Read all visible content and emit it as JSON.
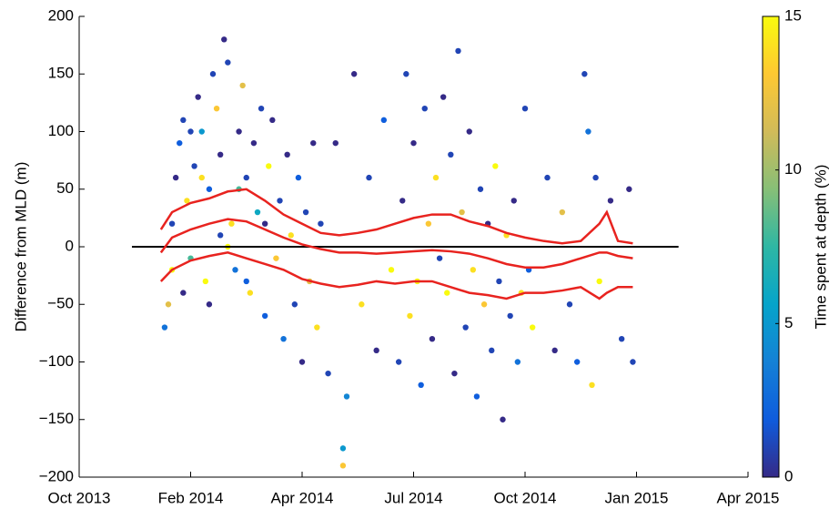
{
  "chart_data": {
    "type": "scatter",
    "ylabel": "Difference from MLD (m)",
    "xlim": [
      0,
      18
    ],
    "xticks": [
      {
        "value": 0,
        "label": "Oct 2013"
      },
      {
        "value": 3,
        "label": "Feb 2014"
      },
      {
        "value": 6,
        "label": "Apr 2014"
      },
      {
        "value": 9,
        "label": "Jul 2014"
      },
      {
        "value": 12,
        "label": "Oct 2014"
      },
      {
        "value": 15,
        "label": "Jan 2015"
      },
      {
        "value": 18,
        "label": "Apr 2015"
      }
    ],
    "ylim": [
      -200,
      200
    ],
    "yticks": [
      {
        "value": -200,
        "label": "−200"
      },
      {
        "value": -150,
        "label": "−150"
      },
      {
        "value": -100,
        "label": "−100"
      },
      {
        "value": -50,
        "label": "−50"
      },
      0,
      50,
      100,
      150,
      200
    ],
    "colorbar_label": "Time spent at depth (%)",
    "clim": [
      0,
      15
    ],
    "cticks": [
      0,
      5,
      10,
      15
    ],
    "colormap": [
      "#352a87",
      "#0f5cdd",
      "#1481d6",
      "#06a4ca",
      "#2eb7a4",
      "#87bf77",
      "#d1bb59",
      "#fec832",
      "#f9fb0e"
    ],
    "x": [
      2.3,
      2.4,
      2.5,
      2.6,
      2.7,
      2.8,
      2.9,
      3.0,
      3.1,
      3.2,
      3.3,
      3.4,
      3.5,
      3.6,
      3.7,
      3.8,
      3.9,
      4.0,
      4.1,
      4.2,
      4.3,
      4.4,
      4.5,
      4.6,
      4.7,
      4.8,
      4.9,
      5.0,
      5.1,
      5.2,
      5.3,
      5.4,
      5.5,
      5.6,
      5.7,
      5.8,
      5.9,
      6.0,
      6.1,
      6.2,
      6.3,
      6.4,
      6.5,
      2.5,
      3.0,
      3.5,
      4.0,
      4.5,
      5.0,
      3.3,
      3.8,
      4.3,
      2.8,
      6.7,
      6.9,
      7.1,
      7.1,
      7.2,
      7.4,
      7.6,
      7.8,
      8.0,
      8.2,
      8.4,
      8.6,
      8.7,
      8.8,
      8.9,
      9.0,
      9.1,
      9.2,
      9.3,
      9.4,
      9.5,
      9.6,
      9.7,
      9.8,
      9.9,
      10.0,
      10.1,
      10.2,
      10.3,
      10.4,
      10.5,
      10.6,
      10.7,
      10.8,
      10.9,
      11.0,
      11.1,
      11.2,
      11.3,
      11.4,
      11.5,
      11.6,
      11.7,
      11.8,
      11.9,
      12.0,
      12.1,
      12.2,
      12.6,
      12.8,
      13.0,
      13.2,
      13.4,
      13.6,
      13.7,
      13.8,
      13.9,
      14.0,
      14.3,
      14.6,
      14.8,
      14.9
    ],
    "values": [
      -70,
      -50,
      20,
      60,
      90,
      110,
      40,
      -10,
      70,
      130,
      100,
      -30,
      50,
      150,
      120,
      80,
      180,
      160,
      20,
      -20,
      100,
      140,
      60,
      -40,
      90,
      30,
      120,
      -60,
      70,
      110,
      -10,
      40,
      -80,
      80,
      10,
      -50,
      60,
      -100,
      30,
      -30,
      90,
      -70,
      20,
      -20,
      100,
      -50,
      0,
      -30,
      20,
      60,
      10,
      50,
      -40,
      -110,
      90,
      -190,
      -175,
      -130,
      150,
      -50,
      60,
      -90,
      110,
      -20,
      -100,
      40,
      150,
      -60,
      90,
      -30,
      -120,
      120,
      20,
      -80,
      60,
      -10,
      130,
      -40,
      80,
      -110,
      170,
      30,
      -70,
      100,
      -20,
      -130,
      50,
      -50,
      20,
      -90,
      70,
      -30,
      -150,
      10,
      -60,
      40,
      -100,
      -40,
      120,
      -20,
      -70,
      60,
      -90,
      30,
      -50,
      -100,
      150,
      100,
      -120,
      60,
      -30,
      40,
      -80,
      50,
      -100
    ],
    "color_values": [
      3,
      12,
      1,
      0,
      2,
      1,
      14,
      8,
      1,
      0,
      5,
      15,
      2,
      1,
      13,
      0,
      0,
      1,
      14,
      3,
      0,
      12,
      1,
      14,
      0,
      6,
      1,
      2,
      15,
      0,
      13,
      1,
      3,
      0,
      14,
      1,
      2,
      0,
      1,
      12,
      0,
      14,
      1,
      15,
      1,
      0,
      15,
      2,
      0,
      14,
      1,
      8,
      0,
      1,
      0,
      13,
      5,
      4,
      0,
      14,
      1,
      0,
      2,
      15,
      1,
      0,
      1,
      14,
      0,
      15,
      2,
      1,
      13,
      0,
      14,
      1,
      0,
      15,
      1,
      0,
      1,
      12,
      1,
      0,
      14,
      2,
      1,
      13,
      0,
      1,
      15,
      1,
      0,
      14,
      1,
      0,
      3,
      14,
      1,
      2,
      15,
      1,
      0,
      12,
      1,
      2,
      1,
      3,
      14,
      1,
      15,
      0,
      1,
      0,
      1
    ],
    "hline": {
      "y": 0,
      "xmin": 1.42,
      "xmax": 16.13,
      "color": "#000000"
    },
    "lines": [
      {
        "color": "#e8231f",
        "x": [
          2.2,
          2.5,
          3,
          3.5,
          4,
          4.5,
          5,
          5.5,
          6,
          6.5,
          7,
          7.5,
          8,
          8.5,
          9,
          9.5,
          10,
          10.5,
          11,
          11.5,
          12,
          12.5,
          13,
          13.5,
          14,
          14.2,
          14.5,
          14.9
        ],
        "values": [
          15,
          30,
          38,
          42,
          48,
          50,
          40,
          28,
          20,
          12,
          10,
          12,
          15,
          20,
          25,
          28,
          28,
          22,
          18,
          12,
          8,
          5,
          3,
          5,
          20,
          30,
          5,
          3
        ]
      },
      {
        "color": "#e8231f",
        "x": [
          2.2,
          2.5,
          3,
          3.5,
          4,
          4.5,
          5,
          5.5,
          6,
          6.5,
          7,
          7.5,
          8,
          8.5,
          9,
          9.5,
          10,
          10.5,
          11,
          11.5,
          12,
          12.5,
          13,
          13.5,
          14,
          14.2,
          14.5,
          14.9
        ],
        "values": [
          -5,
          8,
          15,
          20,
          24,
          22,
          15,
          8,
          2,
          -2,
          -5,
          -5,
          -6,
          -5,
          -4,
          -3,
          -4,
          -6,
          -10,
          -15,
          -18,
          -18,
          -15,
          -10,
          -5,
          -5,
          -8,
          -10
        ]
      },
      {
        "color": "#e8231f",
        "x": [
          2.2,
          2.5,
          3,
          3.5,
          4,
          4.5,
          5,
          5.5,
          6,
          6.5,
          7,
          7.5,
          8,
          8.5,
          9,
          9.5,
          10,
          10.5,
          11,
          11.5,
          12,
          12.5,
          13,
          13.5,
          14,
          14.2,
          14.5,
          14.9
        ],
        "values": [
          -30,
          -20,
          -12,
          -8,
          -5,
          -10,
          -15,
          -20,
          -28,
          -32,
          -35,
          -33,
          -30,
          -32,
          -30,
          -30,
          -35,
          -40,
          -42,
          -45,
          -40,
          -40,
          -38,
          -35,
          -45,
          -40,
          -35,
          -35
        ]
      }
    ]
  }
}
